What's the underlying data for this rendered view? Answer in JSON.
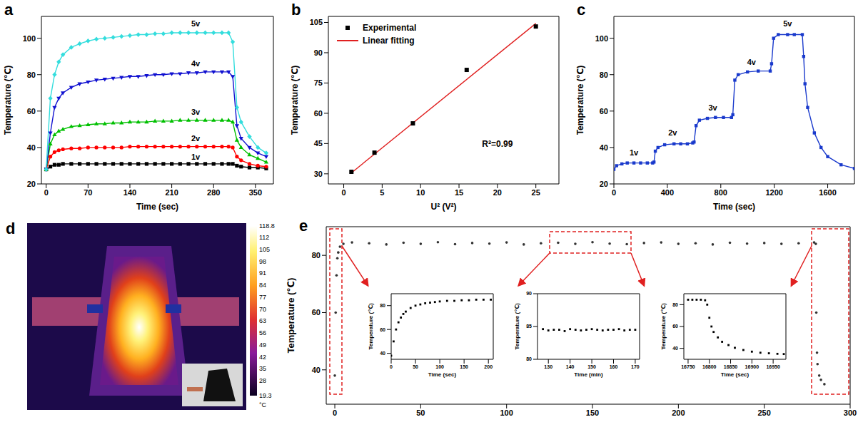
{
  "chart_data": [
    {
      "panel": "a",
      "type": "line",
      "x_label": "Time (sec)",
      "y_label": "Temperature (℃)",
      "xlim": [
        -8,
        380
      ],
      "xticks": [
        0,
        70,
        140,
        210,
        280,
        350
      ],
      "ylim": [
        20,
        112
      ],
      "yticks": [
        20,
        40,
        60,
        80,
        100
      ],
      "x": [
        0,
        7,
        14,
        21,
        28,
        42,
        56,
        70,
        84,
        98,
        112,
        126,
        140,
        154,
        168,
        182,
        196,
        210,
        224,
        238,
        252,
        266,
        280,
        294,
        305,
        312,
        319,
        326,
        340,
        354,
        368
      ],
      "series": [
        {
          "name": "1v",
          "color": "#000000",
          "marker": "square",
          "line_style": "solid",
          "values": [
            28,
            29.5,
            30.5,
            30.5,
            31,
            31,
            31,
            31,
            31,
            31,
            31,
            31,
            31,
            31,
            31,
            31,
            31,
            31,
            31,
            31,
            31,
            31,
            31,
            31,
            31,
            31,
            30,
            29.5,
            29,
            29,
            28.5
          ]
        },
        {
          "name": "2v",
          "color": "#ff0000",
          "marker": "circle",
          "line_style": "solid",
          "values": [
            28,
            35,
            37.5,
            38.5,
            39,
            39.5,
            39.5,
            40,
            40,
            40,
            40,
            40,
            40.5,
            40.5,
            40.5,
            40.5,
            40.5,
            40.5,
            40.5,
            40.5,
            40.5,
            40.5,
            40.5,
            40.5,
            40.5,
            40,
            35,
            33,
            31,
            30,
            29.5
          ]
        },
        {
          "name": "3v",
          "color": "#00c000",
          "marker": "triangle",
          "line_style": "solid",
          "values": [
            28,
            42,
            47,
            49,
            50,
            51.5,
            52,
            52.5,
            53,
            53,
            53.5,
            53.5,
            54,
            54,
            54,
            54.5,
            54.5,
            54.5,
            55,
            55,
            55,
            55,
            55,
            55,
            55,
            54,
            44,
            40,
            36,
            34,
            32
          ]
        },
        {
          "name": "4v",
          "color": "#1010d0",
          "marker": "triangle-down",
          "line_style": "solid",
          "values": [
            28,
            48,
            62,
            67,
            70,
            73,
            75,
            76,
            77,
            77.5,
            78,
            78.5,
            79,
            79,
            79.5,
            80,
            80,
            80.5,
            80.5,
            81,
            81,
            81.5,
            81.5,
            81.5,
            81.5,
            79,
            52,
            45,
            40,
            37,
            35
          ]
        },
        {
          "name": "5v",
          "color": "#33dddd",
          "marker": "diamond",
          "line_style": "solid",
          "values": [
            28,
            67,
            80,
            87,
            91,
            95,
            97,
            98.5,
            99.5,
            100,
            100.5,
            101,
            101.5,
            102,
            102,
            102.5,
            102.5,
            103,
            103,
            103,
            103,
            103,
            103,
            103,
            103,
            98,
            62,
            54,
            46,
            40,
            37
          ]
        }
      ],
      "annotations": [
        {
          "text": "5v",
          "x": 250,
          "y": 108
        },
        {
          "text": "4v",
          "x": 250,
          "y": 86
        },
        {
          "text": "3v",
          "x": 250,
          "y": 59.5
        },
        {
          "text": "2v",
          "x": 250,
          "y": 45
        },
        {
          "text": "1v",
          "x": 250,
          "y": 35
        }
      ]
    },
    {
      "panel": "b",
      "type": "scatter",
      "x_label": "U² (V²)",
      "y_label": "Temperature (℃)",
      "xlim": [
        -2,
        28
      ],
      "xticks": [
        0,
        5,
        10,
        15,
        20,
        25
      ],
      "ylim": [
        25,
        108
      ],
      "yticks": [
        30,
        45,
        60,
        75,
        90,
        105
      ],
      "legend": "upper left",
      "series": [
        {
          "name": "Experimental",
          "type": "scatter",
          "color": "#000000",
          "marker": "square",
          "x": [
            1,
            4,
            9,
            16,
            25
          ],
          "values": [
            31,
            40.5,
            55,
            81.5,
            103
          ]
        },
        {
          "name": "Linear fitting",
          "type": "line",
          "color": "#e02020",
          "marker": "none",
          "line_style": "solid",
          "x": [
            1,
            25
          ],
          "values": [
            30.5,
            104.5
          ]
        }
      ],
      "annotations": [
        {
          "text": "R²=0.99",
          "x": 20,
          "y": 45
        }
      ]
    },
    {
      "panel": "c",
      "type": "line",
      "x_label": "Time (sec)",
      "y_label": "Temperature (℃)",
      "xlim": [
        0,
        1800
      ],
      "xticks": [
        0,
        400,
        800,
        1200,
        1600
      ],
      "ylim": [
        20,
        112
      ],
      "yticks": [
        20,
        40,
        60,
        80,
        100
      ],
      "color": "#1a3acc",
      "marker": "square",
      "line_style": "solid",
      "x": [
        0,
        20,
        60,
        100,
        150,
        200,
        250,
        290,
        300,
        310,
        330,
        380,
        450,
        500,
        550,
        590,
        600,
        615,
        640,
        700,
        760,
        820,
        880,
        890,
        905,
        930,
        1000,
        1080,
        1170,
        1180,
        1195,
        1230,
        1300,
        1350,
        1410,
        1420,
        1430,
        1450,
        1500,
        1550,
        1600,
        1700,
        1800
      ],
      "values": [
        28,
        30,
        31,
        31.5,
        31.5,
        31.5,
        31.5,
        31.5,
        32,
        38,
        40,
        41.5,
        42,
        42,
        42,
        42.5,
        43,
        52,
        55,
        56,
        56.5,
        56.5,
        56.5,
        58,
        77,
        80,
        81.5,
        82,
        82,
        86,
        100,
        102,
        102,
        102,
        102,
        90,
        75,
        62,
        48,
        40,
        35,
        30.5,
        28.5
      ],
      "annotations": [
        {
          "text": "1v",
          "x": 150,
          "y": 37
        },
        {
          "text": "2v",
          "x": 440,
          "y": 48
        },
        {
          "text": "3v",
          "x": 740,
          "y": 62
        },
        {
          "text": "4v",
          "x": 1030,
          "y": 87
        },
        {
          "text": "5v",
          "x": 1300,
          "y": 108
        }
      ]
    },
    {
      "panel": "d",
      "type": "image",
      "colorbar": {
        "range": [
          19.3,
          118.8
        ],
        "ticks": [
          118.8,
          112,
          105,
          98,
          91,
          84,
          77,
          70,
          63,
          56,
          49,
          42,
          35,
          28,
          19.3
        ],
        "unit": "°C"
      }
    },
    {
      "panel": "e",
      "type": "scatter",
      "y_label": "Temperature (℃)",
      "xlim": [
        -5,
        300
      ],
      "xticks": [
        0,
        50,
        100,
        150,
        200,
        250,
        300
      ],
      "ylim": [
        28,
        90
      ],
      "yticks": [
        40,
        60,
        80
      ],
      "color": "#333333",
      "marker": "circle",
      "x": [
        0,
        0.5,
        1,
        1.5,
        2,
        3,
        5,
        10,
        20,
        30,
        40,
        50,
        60,
        70,
        80,
        90,
        100,
        110,
        120,
        130,
        140,
        150,
        160,
        170,
        180,
        190,
        200,
        210,
        220,
        230,
        240,
        250,
        260,
        270,
        279,
        280,
        280.3,
        280.7,
        281,
        282,
        283,
        285
      ],
      "values": [
        38,
        60,
        73,
        79,
        81,
        83,
        84,
        84.5,
        84.2,
        83.8,
        84.4,
        84,
        84.6,
        83.9,
        84.3,
        84.1,
        84.5,
        83.8,
        84.2,
        84.4,
        84,
        84.6,
        84.1,
        83.9,
        84.3,
        84.5,
        84,
        84.2,
        83.8,
        84.4,
        84.1,
        84.3,
        84,
        84.2,
        84.5,
        84,
        60,
        46,
        42,
        38,
        36.5,
        35
      ],
      "insets": [
        {
          "type": "scatter",
          "x_label": "Time (sec)",
          "y_label": "Temperature (℃)",
          "color": "#000000",
          "marker": "square",
          "xlim": [
            0,
            210
          ],
          "xticks": [
            0,
            50,
            100,
            150,
            200
          ],
          "ylim": [
            35,
            90
          ],
          "yticks": [
            40,
            60,
            80
          ],
          "x": [
            0,
            5,
            10,
            15,
            20,
            25,
            30,
            40,
            50,
            60,
            70,
            80,
            90,
            100,
            115,
            130,
            145,
            160,
            175,
            190,
            205
          ],
          "values": [
            38,
            50,
            60,
            66,
            70,
            73,
            75,
            78,
            80,
            81,
            82,
            82.5,
            83,
            83.5,
            84,
            84,
            84.5,
            84.5,
            85,
            85,
            85
          ]
        },
        {
          "type": "scatter",
          "x_label": "Time (min)",
          "y_label": "Temperature (℃)",
          "color": "#000000",
          "marker": "square",
          "xlim": [
            125,
            172
          ],
          "xticks": [
            130,
            140,
            150,
            160,
            170
          ],
          "ylim": [
            80,
            90
          ],
          "yticks": [
            80,
            85,
            90
          ],
          "x": [
            127.5,
            130,
            132.5,
            135,
            137.5,
            140,
            142.5,
            145,
            147.5,
            150,
            152.5,
            155,
            157.5,
            160,
            162.5,
            165,
            167.5,
            170
          ],
          "values": [
            84.6,
            84.4,
            84.5,
            84.5,
            84.3,
            84.6,
            84.5,
            84.4,
            84.5,
            84.6,
            84.5,
            84.4,
            84.5,
            84.5,
            84.6,
            84.4,
            84.5,
            84.5
          ]
        },
        {
          "type": "scatter",
          "x_label": "Time (sec)",
          "y_label": "Temperature (℃)",
          "color": "#000000",
          "marker": "square",
          "xlim": [
            16740,
            16980
          ],
          "xticks": [
            16750,
            16800,
            16850,
            16900,
            16950
          ],
          "ylim": [
            30,
            90
          ],
          "yticks": [
            40,
            60,
            80
          ],
          "x": [
            16750,
            16760,
            16770,
            16780,
            16790,
            16795,
            16800,
            16805,
            16810,
            16820,
            16830,
            16845,
            16860,
            16880,
            16900,
            16920,
            16940,
            16960,
            16975
          ],
          "values": [
            84.5,
            84.5,
            84.5,
            84.5,
            84,
            80,
            68,
            60,
            55,
            50,
            46,
            43,
            40.5,
            38.5,
            37,
            36,
            35.5,
            35,
            34.8
          ]
        }
      ]
    }
  ]
}
